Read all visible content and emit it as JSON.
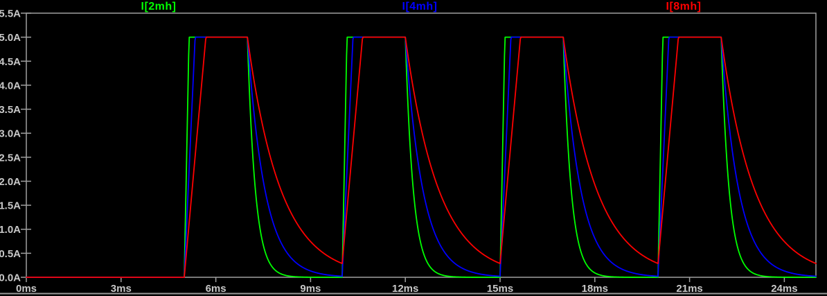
{
  "window": {
    "background": "#000000",
    "kind": "waveform-viewer-plot-pane"
  },
  "chart_data": {
    "type": "line",
    "title": "",
    "xlabel": "",
    "ylabel": "",
    "grid": false,
    "legend_position": "top",
    "x_axis": {
      "unit": "ms",
      "min": 0,
      "max": 25,
      "tick_step": 3,
      "tick_values": [
        0,
        3,
        6,
        9,
        12,
        15,
        18,
        21,
        24
      ],
      "tick_labels": [
        "0ms",
        "3ms",
        "6ms",
        "9ms",
        "12ms",
        "15ms",
        "18ms",
        "21ms",
        "24ms"
      ]
    },
    "y_axis": {
      "unit": "A",
      "min": 0,
      "max": 5.5,
      "tick_step": 0.5,
      "tick_values": [
        0,
        0.5,
        1.0,
        1.5,
        2.0,
        2.5,
        3.0,
        3.5,
        4.0,
        4.5,
        5.0,
        5.5
      ],
      "tick_labels": [
        "0.0A",
        "0.5A",
        "1.0A",
        "1.5A",
        "2.0A",
        "2.5A",
        "3.0A",
        "3.5A",
        "4.0A",
        "4.5A",
        "5.0A",
        "5.5A"
      ]
    },
    "legend": [
      {
        "label": "I[2mh]",
        "color": "#00FF00"
      },
      {
        "label": "I[4mh]",
        "color": "#0000FF"
      },
      {
        "label": "I[8mh]",
        "color": "#FF0000"
      }
    ],
    "waveform_model": {
      "description": "Inductor currents for 2mH/4mH/8mH: zero until 5ms, then repeating pulses (period 5ms, on 2ms). Linear rise clamped at 5A during ON; exponential decay toward 0A during OFF. Smaller inductance rises and decays fastest.",
      "amplitude_A": 5,
      "pulse_on_times_ms": [
        5,
        10,
        15,
        20
      ],
      "pulse_off_times_ms": [
        7,
        12,
        17,
        22
      ],
      "series": [
        {
          "name": "I[2mh]",
          "inductance": "2mH",
          "color": "#00FF00",
          "rise_slope_A_per_ms": 33.0,
          "decay_tau_ms": 0.25
        },
        {
          "name": "I[4mh]",
          "inductance": "4mH",
          "color": "#0000FF",
          "rise_slope_A_per_ms": 14.5,
          "decay_tau_ms": 0.55
        },
        {
          "name": "I[8mh]",
          "inductance": "8mH",
          "color": "#FF0000",
          "rise_slope_A_per_ms": 7.3,
          "decay_tau_ms": 1.05
        }
      ],
      "key_values": {
        "flat_top_A": 5.0,
        "red_residual_at_next_pulse_A": 0.29
      }
    },
    "colors": {
      "axis": "#A0A0A0",
      "tick_label": "#C8C8C8",
      "window_separator": "#9A9A9A",
      "background": "#000000"
    }
  }
}
